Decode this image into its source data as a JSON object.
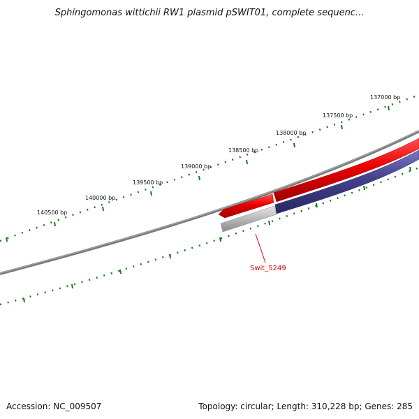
{
  "title": "Sphingomonas wittichii RW1 plasmid pSWIT01, complete sequenc...",
  "footer": {
    "accession": "Accession: NC_009507",
    "summary": "Topology: circular; Length: 310,228 bp; Genes: 285"
  },
  "tick_labels": [
    "137000 bp",
    "137500 bp",
    "138000 bp",
    "138500 bp",
    "139000 bp",
    "139500 bp",
    "140000 bp",
    "140500 bp"
  ],
  "gene_label": "Swit_5249",
  "colors": {
    "forward_gene": "#e00000",
    "reverse_gene": "#44408c",
    "highlight_gene": "#b8b8b8",
    "backbone": "#7a7a7a",
    "ticks": "#1d7a1d",
    "label": "#dd0000"
  }
}
